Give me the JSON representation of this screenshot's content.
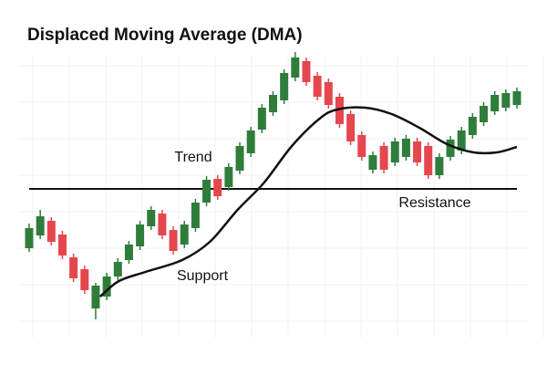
{
  "chart_data": {
    "type": "candlestick",
    "title": "Displaced Moving Average (DMA)",
    "x": [
      0,
      1,
      2,
      3,
      4,
      5,
      6,
      7,
      8,
      9,
      10,
      11,
      12,
      13,
      14,
      15,
      16,
      17,
      18,
      19,
      20,
      21,
      22,
      23,
      24,
      25,
      26,
      27,
      28,
      29,
      30,
      31,
      32,
      33,
      34,
      35,
      36,
      37,
      38,
      39,
      40,
      41,
      42,
      43,
      44
    ],
    "open": [
      88,
      102,
      118,
      103,
      78,
      65,
      22,
      35,
      57,
      75,
      90,
      112,
      126,
      108,
      92,
      110,
      138,
      164,
      155,
      173,
      192,
      218,
      237,
      250,
      275,
      293,
      277,
      270,
      254,
      235,
      212,
      174,
      200,
      182,
      188,
      205,
      200,
      168,
      188,
      195,
      212,
      226,
      238,
      242,
      245
    ],
    "close": [
      110,
      123,
      95,
      80,
      55,
      42,
      47,
      57,
      73,
      92,
      114,
      130,
      102,
      85,
      114,
      138,
      163,
      145,
      177,
      200,
      217,
      242,
      256,
      280,
      297,
      270,
      254,
      245,
      224,
      205,
      188,
      190,
      174,
      205,
      208,
      182,
      168,
      188,
      207,
      217,
      232,
      244,
      256,
      258,
      260
    ],
    "high": [
      115,
      130,
      122,
      107,
      82,
      69,
      50,
      61,
      77,
      96,
      118,
      134,
      130,
      112,
      118,
      142,
      167,
      168,
      181,
      204,
      221,
      246,
      260,
      284,
      303,
      297,
      281,
      274,
      258,
      239,
      216,
      194,
      204,
      209,
      212,
      209,
      204,
      192,
      211,
      221,
      236,
      248,
      260,
      262,
      264
    ],
    "low": [
      84,
      98,
      91,
      76,
      51,
      38,
      10,
      31,
      53,
      71,
      86,
      108,
      98,
      81,
      88,
      106,
      134,
      141,
      151,
      169,
      188,
      214,
      233,
      246,
      271,
      266,
      250,
      241,
      220,
      201,
      184,
      170,
      170,
      178,
      184,
      178,
      164,
      164,
      184,
      191,
      208,
      222,
      234,
      238,
      241
    ],
    "up_color": "#2f7d3b",
    "down_color": "#e5474e",
    "xlim": [
      0,
      44
    ],
    "ylim": [
      0,
      320
    ],
    "dma": {
      "color": "#111111",
      "x": [
        6.4,
        8.1,
        10.5,
        13.8,
        16.3,
        18.8,
        21.2,
        23.7,
        26.2,
        27.8,
        30.3,
        32.7,
        35.2,
        37.7,
        40.1,
        42.2,
        44
      ],
      "values": [
        35,
        52,
        62,
        75,
        95,
        130,
        160,
        200,
        230,
        240,
        242,
        235,
        220,
        202,
        193,
        193,
        199
      ]
    },
    "level": {
      "value": 153,
      "color": "#111111"
    },
    "annotations": [
      "Trend",
      "Support",
      "Resistance"
    ]
  }
}
